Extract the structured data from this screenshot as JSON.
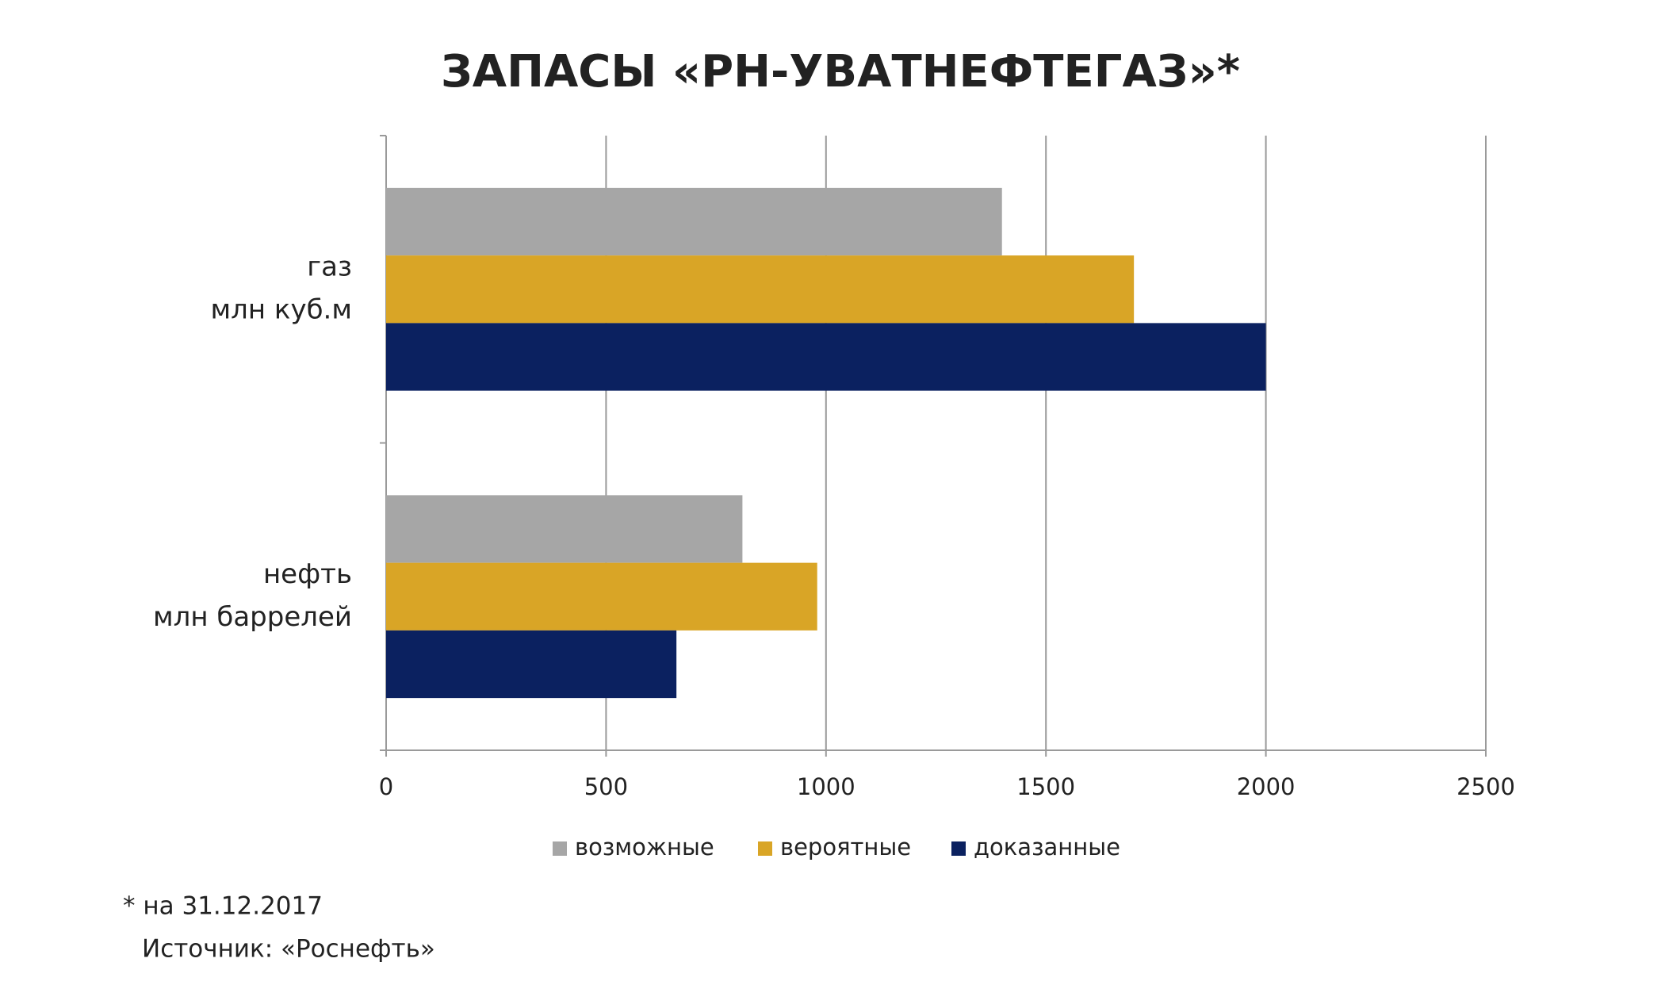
{
  "chart_data": {
    "type": "bar",
    "orientation": "horizontal",
    "title": "ЗАПАСЫ «РН-УВАТНЕФТЕГАЗ»*",
    "categories": [
      [
        "газ",
        "млн куб.м"
      ],
      [
        "нефть",
        "млн баррелей"
      ]
    ],
    "series": [
      {
        "name": "возможные",
        "color": "#a6a6a6",
        "values": [
          1400,
          810
        ]
      },
      {
        "name": "вероятные",
        "color": "#d9a526",
        "values": [
          1700,
          980
        ]
      },
      {
        "name": "доказанные",
        "color": "#0b2160",
        "values": [
          2000,
          660
        ]
      }
    ],
    "xlim": [
      0,
      2500
    ],
    "xticks": [
      0,
      500,
      1000,
      1500,
      2000,
      2500
    ],
    "grid": true,
    "legend": "bottom",
    "footnotes": [
      "* на 31.12.2017",
      "Источник: «Роснефть»"
    ]
  }
}
